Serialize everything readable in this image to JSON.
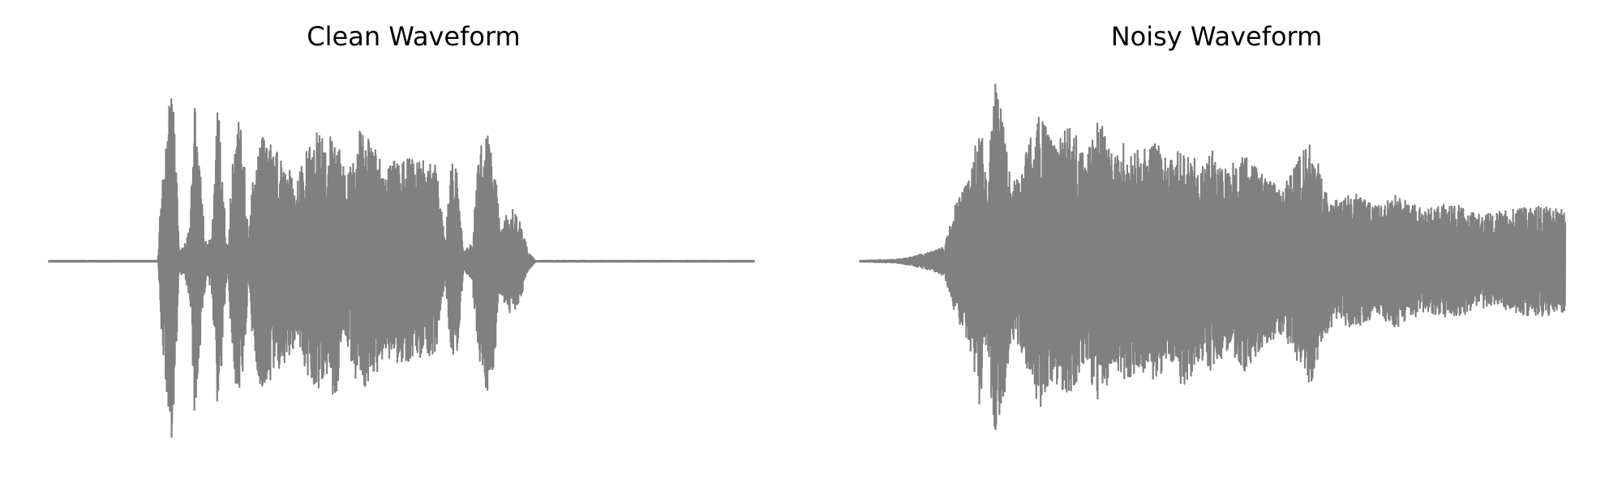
{
  "chart_data": [
    {
      "type": "line",
      "title": "Clean Waveform",
      "xlabel": "",
      "ylabel": "",
      "axes_visible": false,
      "grid": false,
      "ylim": [
        -1,
        1
      ],
      "color": "#808080",
      "envelope": [
        [
          0.0,
          0.003
        ],
        [
          0.155,
          0.003
        ],
        [
          0.16,
          0.45
        ],
        [
          0.168,
          0.75
        ],
        [
          0.175,
          0.98
        ],
        [
          0.18,
          0.6
        ],
        [
          0.185,
          0.05
        ],
        [
          0.195,
          0.12
        ],
        [
          0.2,
          0.2
        ],
        [
          0.207,
          0.86
        ],
        [
          0.213,
          0.6
        ],
        [
          0.218,
          0.3
        ],
        [
          0.224,
          0.07
        ],
        [
          0.232,
          0.2
        ],
        [
          0.24,
          0.88
        ],
        [
          0.247,
          0.45
        ],
        [
          0.253,
          0.05
        ],
        [
          0.262,
          0.6
        ],
        [
          0.27,
          0.78
        ],
        [
          0.278,
          0.55
        ],
        [
          0.283,
          0.1
        ],
        [
          0.29,
          0.5
        ],
        [
          0.3,
          0.7
        ],
        [
          0.32,
          0.62
        ],
        [
          0.34,
          0.52
        ],
        [
          0.355,
          0.48
        ],
        [
          0.37,
          0.65
        ],
        [
          0.385,
          0.72
        ],
        [
          0.395,
          0.6
        ],
        [
          0.405,
          0.78
        ],
        [
          0.415,
          0.55
        ],
        [
          0.425,
          0.48
        ],
        [
          0.44,
          0.72
        ],
        [
          0.455,
          0.66
        ],
        [
          0.47,
          0.58
        ],
        [
          0.48,
          0.52
        ],
        [
          0.49,
          0.55
        ],
        [
          0.5,
          0.56
        ],
        [
          0.515,
          0.56
        ],
        [
          0.532,
          0.55
        ],
        [
          0.55,
          0.52
        ],
        [
          0.562,
          0.1
        ],
        [
          0.57,
          0.55
        ],
        [
          0.58,
          0.5
        ],
        [
          0.588,
          0.05
        ],
        [
          0.6,
          0.1
        ],
        [
          0.61,
          0.6
        ],
        [
          0.62,
          0.73
        ],
        [
          0.632,
          0.55
        ],
        [
          0.64,
          0.18
        ],
        [
          0.655,
          0.3
        ],
        [
          0.67,
          0.2
        ],
        [
          0.68,
          0.05
        ],
        [
          0.69,
          0.003
        ],
        [
          1.0,
          0.003
        ]
      ]
    },
    {
      "type": "line",
      "title": "Noisy Waveform",
      "xlabel": "",
      "ylabel": "",
      "axes_visible": false,
      "grid": false,
      "ylim": [
        -1,
        1
      ],
      "color": "#808080",
      "envelope": [
        [
          0.0,
          0.003
        ],
        [
          0.05,
          0.008
        ],
        [
          0.07,
          0.02
        ],
        [
          0.1,
          0.05
        ],
        [
          0.12,
          0.08
        ],
        [
          0.135,
          0.3
        ],
        [
          0.155,
          0.45
        ],
        [
          0.17,
          0.8
        ],
        [
          0.18,
          0.45
        ],
        [
          0.192,
          0.98
        ],
        [
          0.205,
          0.75
        ],
        [
          0.215,
          0.4
        ],
        [
          0.23,
          0.55
        ],
        [
          0.255,
          0.8
        ],
        [
          0.275,
          0.65
        ],
        [
          0.3,
          0.75
        ],
        [
          0.32,
          0.55
        ],
        [
          0.34,
          0.8
        ],
        [
          0.36,
          0.55
        ],
        [
          0.375,
          0.65
        ],
        [
          0.395,
          0.6
        ],
        [
          0.42,
          0.65
        ],
        [
          0.44,
          0.55
        ],
        [
          0.46,
          0.7
        ],
        [
          0.48,
          0.55
        ],
        [
          0.5,
          0.6
        ],
        [
          0.52,
          0.5
        ],
        [
          0.545,
          0.6
        ],
        [
          0.575,
          0.45
        ],
        [
          0.6,
          0.4
        ],
        [
          0.62,
          0.55
        ],
        [
          0.64,
          0.68
        ],
        [
          0.66,
          0.4
        ],
        [
          0.68,
          0.32
        ],
        [
          0.7,
          0.38
        ],
        [
          0.73,
          0.3
        ],
        [
          0.76,
          0.36
        ],
        [
          0.8,
          0.28
        ],
        [
          0.84,
          0.32
        ],
        [
          0.88,
          0.25
        ],
        [
          0.92,
          0.28
        ],
        [
          0.96,
          0.3
        ],
        [
          1.0,
          0.28
        ]
      ]
    }
  ]
}
